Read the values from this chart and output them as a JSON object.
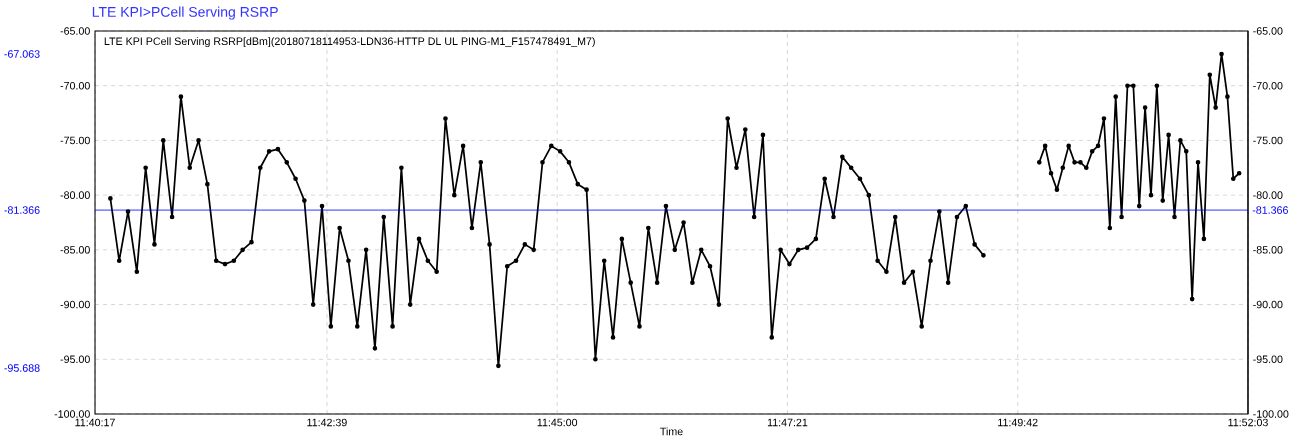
{
  "chart_data": {
    "type": "line",
    "title": "LTE KPI>PCell Serving RSRP",
    "xlabel": "Time",
    "xlim": [
      11.671389,
      11.8675
    ],
    "xticks": [
      {
        "value": 11.671389,
        "label": "11:40:17"
      },
      {
        "value": 11.710833,
        "label": "11:42:39"
      },
      {
        "value": 11.75,
        "label": "11:45:00"
      },
      {
        "value": 11.789167,
        "label": "11:47:21"
      },
      {
        "value": 11.828333,
        "label": "11:49:42"
      },
      {
        "value": 11.8675,
        "label": "11:52:03"
      }
    ],
    "ylim": [
      -100,
      -65
    ],
    "yticks": [
      {
        "value": -100,
        "label": "-100.00"
      },
      {
        "value": -95,
        "label": "-95.00"
      },
      {
        "value": -90,
        "label": "-90.00"
      },
      {
        "value": -85,
        "label": "-85.00"
      },
      {
        "value": -80,
        "label": "-80.00"
      },
      {
        "value": -75,
        "label": "-75.00"
      },
      {
        "value": -70,
        "label": "-70.00"
      },
      {
        "value": -65,
        "label": "-65.00"
      }
    ],
    "y2lim": [
      -100,
      -65
    ],
    "y2ticks": [
      {
        "value": -100,
        "label": "-100.00"
      },
      {
        "value": -95,
        "label": "-95.00"
      },
      {
        "value": -90,
        "label": "-90.00"
      },
      {
        "value": -85,
        "label": "-85.00"
      },
      {
        "value": -80,
        "label": "-80.00"
      },
      {
        "value": -75,
        "label": "-75.00"
      },
      {
        "value": -70,
        "label": "-70.00"
      },
      {
        "value": -65,
        "label": "-65.00"
      }
    ],
    "grid": true,
    "legend": "top left",
    "marker": "circle",
    "line_style": "solid",
    "ref_lines": [
      {
        "axis": "y",
        "value": -81.366,
        "label": "-81.366",
        "color": "#0000ff"
      }
    ],
    "annotations": [
      "-67.063",
      "-95.688"
    ],
    "series": [
      {
        "name": "LTE KPI PCell Serving RSRP[dBm](20180718114953-LDN36-HTTP DL UL PING-M1_F157478491_M7)",
        "color": "#000000",
        "x": [
          11.674,
          11.6755,
          11.677,
          11.6785,
          11.68,
          11.6815,
          11.683,
          11.6845,
          11.686,
          11.6875,
          11.689,
          11.6905,
          11.692,
          11.6935,
          11.695,
          11.6965,
          11.698,
          11.6995,
          11.701,
          11.7025,
          11.704,
          11.7055,
          11.707,
          11.7085,
          11.71,
          11.7115,
          11.713,
          11.7145,
          11.716,
          11.7175,
          11.719,
          11.7205,
          11.722,
          11.7235,
          11.725,
          11.7265,
          11.728,
          11.7295,
          11.731,
          11.7325,
          11.734,
          11.7355,
          11.737,
          11.7385,
          11.74,
          11.7415,
          11.743,
          11.7445,
          11.746,
          11.7475,
          11.749,
          11.7505,
          11.752,
          11.7535,
          11.755,
          11.7565,
          11.758,
          11.7595,
          11.761,
          11.7625,
          11.764,
          11.7655,
          11.767,
          11.7685,
          11.77,
          11.7715,
          11.773,
          11.7745,
          11.776,
          11.7775,
          11.779,
          11.7805,
          11.782,
          11.7835,
          11.785,
          11.7865,
          11.788,
          11.7895,
          11.791,
          11.7925,
          11.794,
          11.7955,
          11.797,
          11.7985,
          11.8,
          11.8015,
          11.803,
          11.8045,
          11.806,
          11.8075,
          11.809,
          11.8105,
          11.812,
          11.8135,
          11.815,
          11.8165,
          11.818,
          11.8195,
          11.821,
          11.8225,
          11.827,
          11.832,
          11.833,
          11.834,
          11.835,
          11.836,
          11.837,
          11.838,
          11.839,
          11.84,
          11.841,
          11.842,
          11.843,
          11.844,
          11.845,
          11.846,
          11.847,
          11.848,
          11.849,
          11.85,
          11.851,
          11.852,
          11.853,
          11.854,
          11.855,
          11.856,
          11.857,
          11.858,
          11.859,
          11.86,
          11.861,
          11.862,
          11.863,
          11.864,
          11.865,
          11.866
        ],
        "values": [
          -80.3,
          -86,
          -81.5,
          -87,
          -77.5,
          -84.5,
          -75,
          -82,
          -71,
          -77.5,
          -75,
          -79,
          -86,
          -86.3,
          -86,
          -85,
          -84.3,
          -77.5,
          -76,
          -75.8,
          -77,
          -78.5,
          -80.5,
          -90,
          -81,
          -92,
          -83,
          -86,
          -92,
          -85,
          -94,
          -82,
          -92,
          -77.5,
          -90,
          -84,
          -86,
          -87,
          -73,
          -80,
          -75.5,
          -83,
          -77,
          -84.5,
          -95.6,
          -86.5,
          -86,
          -84.5,
          -85,
          -77,
          -75.5,
          -76,
          -77,
          -79,
          -79.5,
          -95,
          -86,
          -93,
          -84,
          -88,
          -92,
          -83,
          -88,
          -81,
          -85,
          -82.5,
          -88,
          -85,
          -86.5,
          -90,
          -73,
          -77.5,
          -74,
          -82,
          -74.5,
          -93,
          -85,
          -86.3,
          -85,
          -84.8,
          -84,
          -78.5,
          -82,
          -76.5,
          -77.5,
          -78.5,
          -80,
          -86,
          -87,
          -82,
          -88,
          -87,
          -92,
          -86,
          -81.5,
          -88,
          -82,
          -81,
          -84.5,
          -85.5,
          null,
          -77,
          -75.5,
          -78,
          -79.5,
          -77.5,
          -75.5,
          -77,
          -77,
          -77.5,
          -76,
          -75.5,
          -73,
          -83,
          -71,
          -82,
          -70,
          -70,
          -81,
          -72,
          -80,
          -70,
          -80.5,
          -74.5,
          -82,
          -75,
          -76,
          -89.5,
          -77,
          -84,
          -69,
          -72,
          -67.1,
          -71,
          -78.5,
          -78
        ]
      }
    ]
  }
}
